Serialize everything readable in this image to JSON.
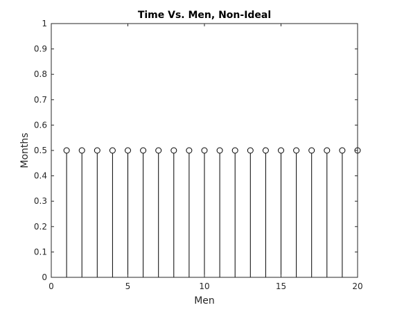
{
  "chart_data": {
    "type": "stem",
    "title": "Time Vs. Men, Non-Ideal",
    "xlabel": "Men",
    "ylabel": "Months",
    "xlim": [
      0,
      20
    ],
    "ylim": [
      0,
      1
    ],
    "xticks": [
      0,
      5,
      10,
      15,
      20
    ],
    "yticks": [
      0,
      0.1,
      0.2,
      0.3,
      0.4,
      0.5,
      0.6,
      0.7,
      0.8,
      0.9,
      1
    ],
    "xtick_labels": [
      "0",
      "5",
      "10",
      "15",
      "20"
    ],
    "ytick_labels": [
      "0",
      "0.1",
      "0.2",
      "0.3",
      "0.4",
      "0.5",
      "0.6",
      "0.7",
      "0.8",
      "0.9",
      "1"
    ],
    "grid": false,
    "marker": "circle-open",
    "colors": {
      "stem": "#000000",
      "axes": "#262626"
    },
    "x": [
      1,
      2,
      3,
      4,
      5,
      6,
      7,
      8,
      9,
      10,
      11,
      12,
      13,
      14,
      15,
      16,
      17,
      18,
      19,
      20
    ],
    "y": [
      0.5,
      0.5,
      0.5,
      0.5,
      0.5,
      0.5,
      0.5,
      0.5,
      0.5,
      0.5,
      0.5,
      0.5,
      0.5,
      0.5,
      0.5,
      0.5,
      0.5,
      0.5,
      0.5,
      0.5
    ]
  }
}
